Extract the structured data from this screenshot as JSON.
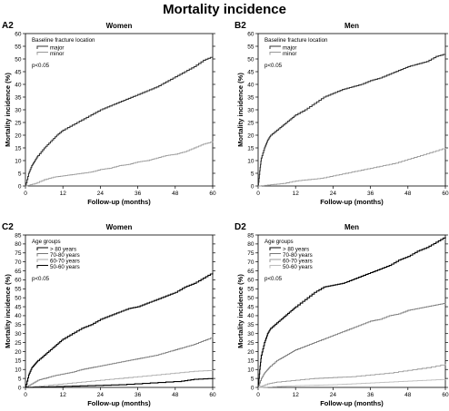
{
  "figure_title": "Mortality incidence",
  "chart_data": [
    {
      "id": "A2",
      "type": "line",
      "title": "Women",
      "xlabel": "Follow-up (months)",
      "ylabel": "Mortality incidence (%)",
      "xlim": [
        0,
        60
      ],
      "ylim": [
        0,
        60
      ],
      "xticks": [
        0,
        12,
        24,
        36,
        48,
        60
      ],
      "yticks": [
        0,
        5,
        10,
        15,
        20,
        25,
        30,
        35,
        40,
        45,
        50,
        55,
        60
      ],
      "legend_title": "Baseline fracture location",
      "legend_placement": "top-left",
      "annotation": "p<0.05",
      "series": [
        {
          "name": "major",
          "color": "#333333",
          "x": [
            0,
            1,
            2,
            3,
            4,
            6,
            8,
            10,
            12,
            15,
            18,
            21,
            24,
            27,
            30,
            33,
            36,
            39,
            42,
            45,
            48,
            51,
            54,
            57,
            60
          ],
          "y": [
            0,
            5,
            8,
            10,
            12,
            15,
            17.5,
            20,
            22,
            24,
            26,
            28,
            30,
            31.5,
            33,
            34.5,
            36,
            37.5,
            39,
            41,
            43,
            45,
            47,
            49.5,
            51
          ]
        },
        {
          "name": "minor",
          "color": "#999999",
          "x": [
            0,
            3,
            6,
            9,
            12,
            15,
            18,
            21,
            24,
            27,
            30,
            33,
            36,
            39,
            42,
            45,
            48,
            51,
            54,
            57,
            60
          ],
          "y": [
            0,
            1,
            2.5,
            3.5,
            4,
            4.5,
            5,
            5.5,
            6.5,
            7,
            8,
            8.5,
            9.5,
            10,
            11,
            12,
            12.5,
            13.5,
            15,
            16.5,
            17.5
          ]
        }
      ]
    },
    {
      "id": "B2",
      "type": "line",
      "title": "Men",
      "xlabel": "Follow-up (months)",
      "ylabel": "Mortality incidence (%)",
      "xlim": [
        0,
        60
      ],
      "ylim": [
        0,
        60
      ],
      "xticks": [
        0,
        12,
        24,
        36,
        48,
        60
      ],
      "yticks": [
        0,
        5,
        10,
        15,
        20,
        25,
        30,
        35,
        40,
        45,
        50,
        55,
        60
      ],
      "legend_title": "Baseline fracture location",
      "legend_placement": "top-left",
      "annotation": "p<0.05",
      "series": [
        {
          "name": "major",
          "color": "#333333",
          "x": [
            0,
            0.5,
            1,
            2,
            3,
            4,
            6,
            8,
            10,
            12,
            15,
            18,
            21,
            24,
            27,
            30,
            33,
            36,
            39,
            42,
            45,
            48,
            51,
            54,
            57,
            60
          ],
          "y": [
            0,
            6,
            11,
            15,
            18,
            20,
            22,
            24,
            26,
            28,
            30,
            32.5,
            35,
            36.5,
            38,
            39,
            40,
            41.5,
            42.5,
            44,
            45.5,
            47,
            48,
            49,
            51,
            52
          ]
        },
        {
          "name": "minor",
          "color": "#999999",
          "x": [
            0,
            4,
            8,
            12,
            16,
            20,
            24,
            28,
            32,
            36,
            40,
            44,
            48,
            52,
            56,
            60
          ],
          "y": [
            0,
            0.5,
            1,
            2,
            2.5,
            3,
            4,
            5,
            6,
            7,
            8,
            9,
            10.5,
            12,
            13.5,
            15
          ]
        }
      ]
    },
    {
      "id": "C2",
      "type": "line",
      "title": "Women",
      "xlabel": "Follow-up (months)",
      "ylabel": "Mortality incidence (%)",
      "xlim": [
        0,
        60
      ],
      "ylim": [
        0,
        85
      ],
      "xticks": [
        0,
        12,
        24,
        36,
        48,
        60
      ],
      "yticks": [
        0,
        5,
        10,
        15,
        20,
        25,
        30,
        35,
        40,
        45,
        50,
        55,
        60,
        65,
        70,
        75,
        80,
        85
      ],
      "legend_title": "Age groups",
      "legend_placement": "top-left",
      "annotation": "p<0.05",
      "series": [
        {
          "name": "> 80 years",
          "color": "#000000",
          "x": [
            0,
            1,
            2,
            3,
            4,
            6,
            8,
            10,
            12,
            15,
            18,
            21,
            24,
            27,
            30,
            33,
            36,
            39,
            42,
            45,
            48,
            51,
            54,
            57,
            60
          ],
          "y": [
            0,
            7,
            11,
            13,
            15,
            18,
            21,
            24,
            27,
            30,
            33,
            35,
            38,
            40,
            42,
            44,
            45,
            47,
            49,
            51,
            53,
            56,
            58,
            61,
            64
          ]
        },
        {
          "name": "70-80 years",
          "color": "#777777",
          "x": [
            0,
            2,
            4,
            6,
            9,
            12,
            15,
            18,
            21,
            24,
            27,
            30,
            33,
            36,
            39,
            42,
            45,
            48,
            51,
            54,
            57,
            60
          ],
          "y": [
            0,
            2,
            4,
            5,
            6.5,
            7.5,
            8.5,
            10,
            11,
            12,
            13,
            14,
            15,
            16,
            17,
            18,
            19.5,
            21,
            22.5,
            24,
            26,
            28
          ]
        },
        {
          "name": "60-70 years",
          "color": "#aaaaaa",
          "x": [
            0,
            6,
            12,
            18,
            24,
            30,
            36,
            42,
            48,
            54,
            60
          ],
          "y": [
            0,
            1,
            2,
            3,
            4,
            5,
            6,
            7,
            8,
            9,
            9.5
          ]
        },
        {
          "name": "50-60 years",
          "color": "#000000",
          "x": [
            0,
            10,
            20,
            30,
            40,
            50,
            54,
            60
          ],
          "y": [
            0,
            0.5,
            1,
            1.5,
            2.5,
            3.5,
            4.5,
            5
          ]
        }
      ]
    },
    {
      "id": "D2",
      "type": "line",
      "title": "Men",
      "xlabel": "Follow-up (months)",
      "ylabel": "Mortality incidence (%)",
      "xlim": [
        0,
        60
      ],
      "ylim": [
        0,
        85
      ],
      "xticks": [
        0,
        12,
        24,
        36,
        48,
        60
      ],
      "yticks": [
        0,
        5,
        10,
        15,
        20,
        25,
        30,
        35,
        40,
        45,
        50,
        55,
        60,
        65,
        70,
        75,
        80,
        85
      ],
      "legend_title": "Age groups",
      "legend_placement": "top-left",
      "annotation": "p<0.05",
      "series": [
        {
          "name": "> 80 years",
          "color": "#000000",
          "x": [
            0,
            0.5,
            1,
            2,
            3,
            4,
            6,
            8,
            10,
            12,
            15,
            18,
            21,
            24,
            27,
            30,
            33,
            36,
            39,
            42,
            45,
            48,
            51,
            54,
            57,
            60
          ],
          "y": [
            0,
            10,
            18,
            25,
            30,
            33,
            36,
            39,
            42,
            45,
            49,
            53,
            56,
            57,
            58,
            60,
            62,
            64,
            66,
            68,
            71,
            73,
            76,
            78,
            81,
            84
          ]
        },
        {
          "name": "70-80 years",
          "color": "#777777",
          "x": [
            0,
            1,
            2,
            3,
            4,
            6,
            8,
            10,
            12,
            15,
            18,
            21,
            24,
            27,
            30,
            33,
            36,
            39,
            42,
            45,
            48,
            51,
            54,
            57,
            60
          ],
          "y": [
            0,
            5,
            8,
            10,
            12,
            15,
            17,
            19,
            21,
            23,
            25,
            27,
            29,
            31,
            33,
            35,
            37,
            38,
            40,
            41,
            43,
            44,
            45,
            46,
            47
          ]
        },
        {
          "name": "60-70 years",
          "color": "#999999",
          "x": [
            0,
            3,
            6,
            12,
            18,
            24,
            30,
            36,
            42,
            48,
            54,
            60
          ],
          "y": [
            0,
            2,
            3,
            4,
            5,
            5.5,
            6,
            7,
            8,
            9.5,
            11,
            13
          ]
        },
        {
          "name": "50-60 years",
          "color": "#bbbbbb",
          "x": [
            0,
            6,
            12,
            18,
            24,
            30,
            36,
            42,
            48,
            54,
            60
          ],
          "y": [
            0,
            0.5,
            1,
            1.2,
            1.5,
            2,
            2.5,
            3,
            3.5,
            4,
            4.5
          ]
        }
      ]
    }
  ]
}
